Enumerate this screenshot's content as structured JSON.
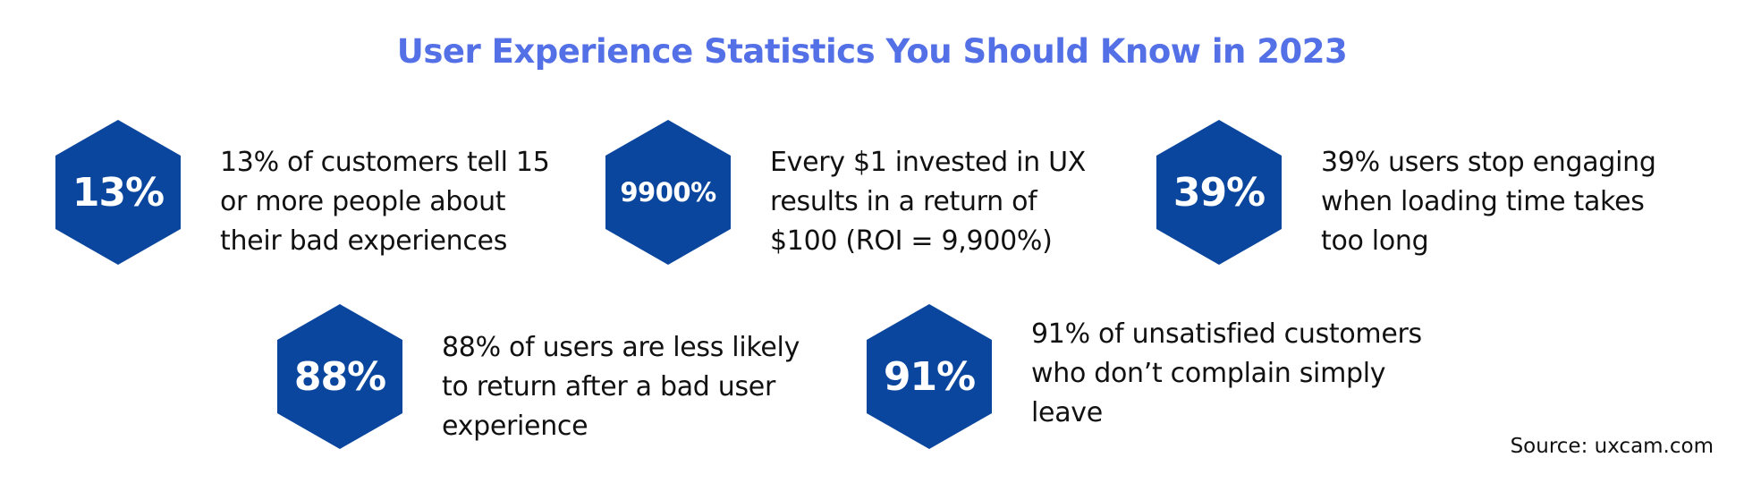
{
  "title": "User Experience Statistics You Should Know in 2023",
  "hex_color": "#0a469e",
  "title_color": "#5470e6",
  "stats": [
    {
      "value": "13%",
      "lines": [
        "13% of customers tell 15",
        "or more people about",
        "their bad experiences"
      ]
    },
    {
      "value": "9900%",
      "lines": [
        "Every $1 invested in UX",
        "results in a return of",
        "$100 (ROI = 9,900%)"
      ]
    },
    {
      "value": "39%",
      "lines": [
        "39% users stop engaging",
        "when loading time takes",
        "too long"
      ]
    },
    {
      "value": "88%",
      "lines": [
        "88% of users are less likely",
        "to return after a bad user",
        "experience"
      ]
    },
    {
      "value": "91%",
      "lines": [
        "91% of unsatisfied customers",
        "who don’t complain simply",
        "leave"
      ]
    }
  ],
  "source": "Source: uxcam.com"
}
